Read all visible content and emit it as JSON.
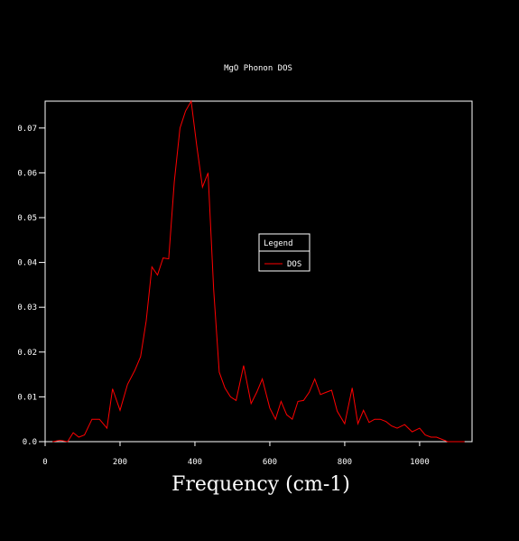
{
  "chart_data": {
    "type": "line",
    "title": "MgO Phonon DOS",
    "xlabel": "Frequency (cm-1)",
    "ylabel": "",
    "xlim": [
      0,
      1140
    ],
    "ylim": [
      0,
      0.076
    ],
    "x_ticks": [
      0,
      200,
      400,
      600,
      800,
      1000
    ],
    "y_ticks": [
      0.0,
      0.01,
      0.02,
      0.03,
      0.04,
      0.05,
      0.06,
      0.07
    ],
    "x_tick_labels": [
      "0",
      "200",
      "400",
      "600",
      "800",
      "1000"
    ],
    "y_tick_labels": [
      "0.0",
      "0.01",
      "0.02",
      "0.03",
      "0.04",
      "0.05",
      "0.06",
      "0.07"
    ],
    "grid": false,
    "legend": {
      "title": "Legend",
      "placement": "center-right"
    },
    "series": [
      {
        "name": "DOS",
        "color": "#ff0000",
        "x": [
          20,
          40,
          60,
          75,
          90,
          105,
          125,
          145,
          165,
          180,
          200,
          220,
          240,
          255,
          270,
          285,
          300,
          315,
          330,
          345,
          360,
          375,
          390,
          405,
          420,
          435,
          450,
          465,
          480,
          495,
          510,
          530,
          550,
          565,
          580,
          600,
          615,
          630,
          645,
          660,
          675,
          690,
          705,
          720,
          735,
          750,
          765,
          780,
          800,
          820,
          835,
          850,
          865,
          880,
          895,
          910,
          925,
          940,
          960,
          980,
          1000,
          1015,
          1030,
          1045,
          1060,
          1075,
          1090,
          1105,
          1120
        ],
        "y": [
          0.0,
          0.0003,
          0.0,
          0.002,
          0.001,
          0.0015,
          0.005,
          0.005,
          0.003,
          0.0118,
          0.007,
          0.0128,
          0.016,
          0.019,
          0.027,
          0.039,
          0.0372,
          0.041,
          0.0408,
          0.058,
          0.07,
          0.0738,
          0.076,
          0.066,
          0.0568,
          0.06,
          0.034,
          0.0155,
          0.012,
          0.01,
          0.0092,
          0.017,
          0.0085,
          0.011,
          0.014,
          0.0075,
          0.005,
          0.009,
          0.006,
          0.005,
          0.009,
          0.0092,
          0.011,
          0.014,
          0.0105,
          0.011,
          0.0115,
          0.0068,
          0.004,
          0.012,
          0.004,
          0.007,
          0.0043,
          0.005,
          0.005,
          0.0045,
          0.0035,
          0.003,
          0.0038,
          0.0022,
          0.003,
          0.0015,
          0.001,
          0.001,
          0.0005,
          0.0,
          0.0,
          0.0,
          0.0
        ]
      }
    ]
  }
}
